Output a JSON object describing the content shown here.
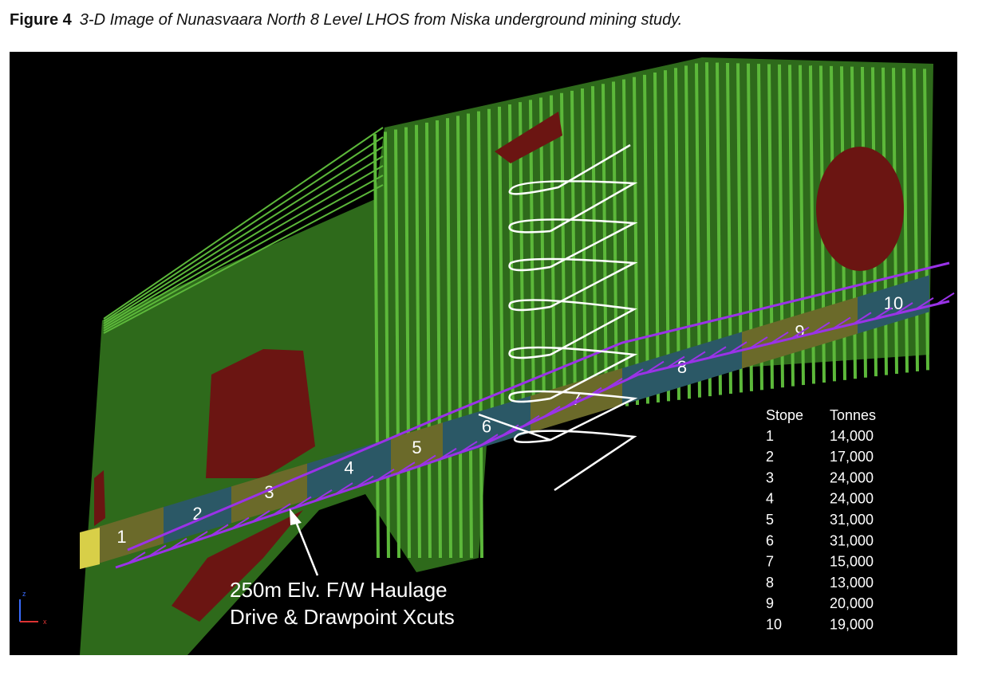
{
  "figure": {
    "label": "Figure 4",
    "caption": "3-D Image of Nunasvaara North 8 Level LHOS from Niska underground mining study."
  },
  "image": {
    "stope_labels": [
      "1",
      "2",
      "3",
      "4",
      "5",
      "6",
      "7",
      "8",
      "9",
      "10"
    ],
    "annotation": [
      "250m Elv. F/W Haulage",
      "Drive & Drawpoint Xcuts"
    ],
    "axis_labels": [
      "z",
      "x"
    ]
  },
  "table": {
    "header": [
      "Stope",
      "Tonnes"
    ],
    "rows": [
      [
        "1",
        "14,000"
      ],
      [
        "2",
        "17,000"
      ],
      [
        "3",
        "24,000"
      ],
      [
        "4",
        "24,000"
      ],
      [
        "5",
        "31,000"
      ],
      [
        "6",
        "31,000"
      ],
      [
        "7",
        "15,000"
      ],
      [
        "8",
        "13,000"
      ],
      [
        "9",
        "20,000"
      ],
      [
        "10",
        "19,000"
      ]
    ]
  }
}
